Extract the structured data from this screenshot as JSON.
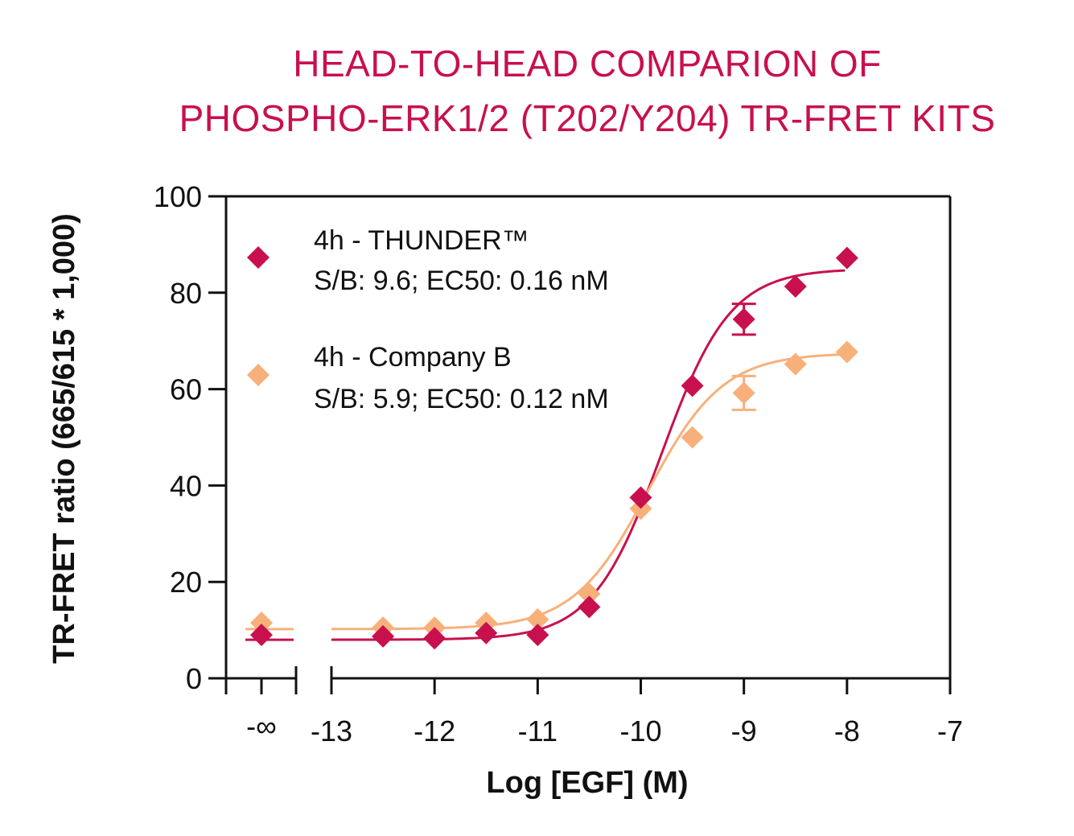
{
  "title_line1": "HEAD-TO-HEAD COMPARION OF",
  "title_line2": "PHOSPHO-ERK1/2 (T202/Y204) TR-FRET KITS",
  "colors": {
    "thunder": "#c8104e",
    "companyB": "#f7b07a",
    "axis": "#111111"
  },
  "chart_data": {
    "type": "scatter",
    "title": "HEAD-TO-HEAD COMPARION OF PHOSPHO-ERK1/2 (T202/Y204) TR-FRET KITS",
    "xlabel": "Log [EGF] (M)",
    "ylabel": "TR-FRET ratio (665/615 * 1,000)",
    "xlim": [
      -13,
      -7
    ],
    "ylim": [
      0,
      100
    ],
    "x_ticks": [
      "-13",
      "-12",
      "-11",
      "-10",
      "-9",
      "-8",
      "-7"
    ],
    "x_tick_values": [
      -13,
      -12,
      -11,
      -10,
      -9,
      -8,
      -7
    ],
    "x_break_label": "-∞",
    "y_ticks": [
      "0",
      "20",
      "40",
      "60",
      "80",
      "100"
    ],
    "y_tick_values": [
      0,
      20,
      40,
      60,
      80,
      100
    ],
    "series": [
      {
        "name": "4h - THUNDER™",
        "stats": "S/B: 9.6; EC50: 0.16 nM",
        "color": "#c8104e",
        "baseline": 9,
        "x": [
          -12.5,
          -12,
          -11.5,
          -11,
          -10.5,
          -10,
          -9.5,
          -9,
          -8.5,
          -8
        ],
        "y": [
          8.7,
          8.3,
          9.4,
          9.0,
          14.8,
          37.5,
          60.7,
          74.5,
          81.3,
          87.2
        ],
        "err": [
          0,
          0,
          0,
          0,
          0,
          0,
          0,
          3.2,
          0,
          0
        ],
        "fit": {
          "bottom": 8,
          "top": 85,
          "logEC50": -9.8,
          "hill": 1.3
        }
      },
      {
        "name": "4h - Company B",
        "stats": "S/B: 5.9; EC50: 0.12 nM",
        "color": "#f7b07a",
        "baseline": 11.5,
        "x": [
          -12.5,
          -12,
          -11.5,
          -11,
          -10.5,
          -10,
          -9.5,
          -9,
          -8.5,
          -8
        ],
        "y": [
          10.5,
          10.5,
          11.5,
          12.2,
          17.5,
          35.2,
          50.0,
          59.2,
          65.2,
          67.7
        ],
        "err": [
          0,
          0,
          0,
          0,
          0,
          0,
          0,
          3.5,
          0,
          0
        ],
        "fit": {
          "bottom": 10.2,
          "top": 67.5,
          "logEC50": -9.93,
          "hill": 1.2
        }
      }
    ]
  }
}
